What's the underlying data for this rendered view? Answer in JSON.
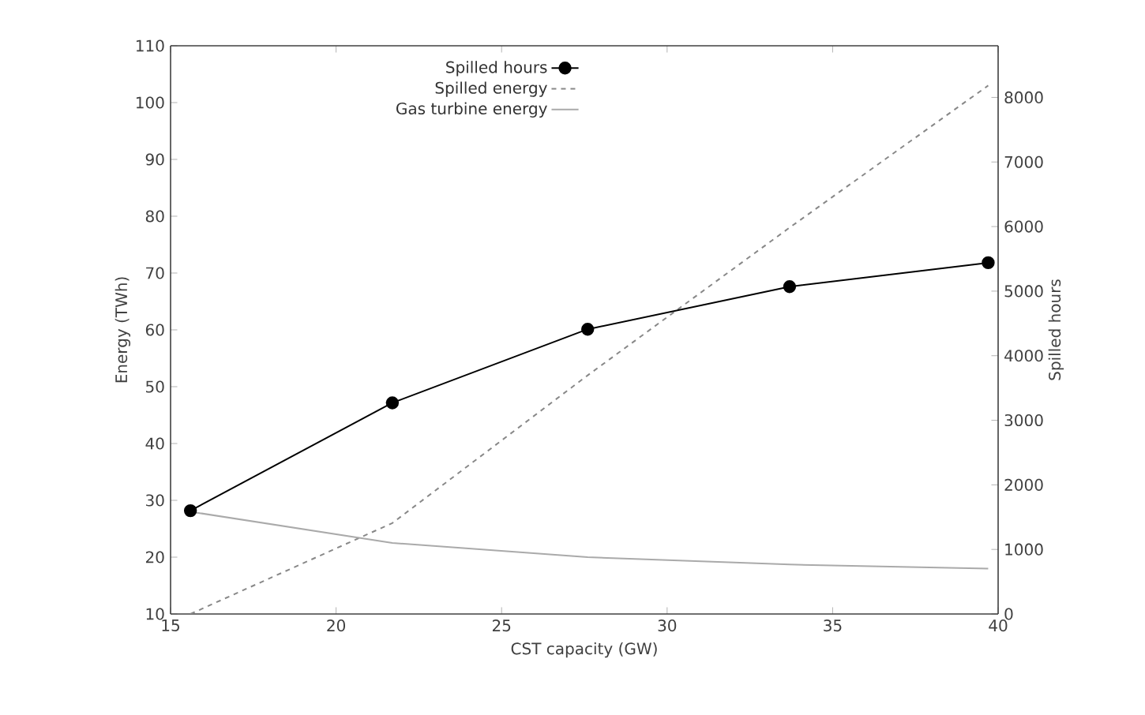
{
  "chart_data": {
    "type": "line",
    "xlabel": "CST capacity (GW)",
    "ylabel": "Energy (TWh)",
    "y2label": "Spilled hours",
    "x": [
      15.6,
      21.7,
      27.6,
      33.7,
      39.7
    ],
    "series": [
      {
        "name": "Spilled hours",
        "color": "#000000",
        "axis": "y2",
        "marker": "circle",
        "line_style": "solid",
        "values": [
          1600,
          3270,
          4410,
          5070,
          5440
        ]
      },
      {
        "name": "Spilled energy",
        "color": "#888888",
        "marker": "none",
        "line_style": "dashed",
        "values": [
          10,
          26,
          52,
          78,
          103
        ]
      },
      {
        "name": "Gas turbine energy",
        "color": "#aaaaaa",
        "marker": "none",
        "line_style": "solid",
        "values": [
          28,
          22.5,
          20,
          18.7,
          18
        ]
      }
    ],
    "xlim": [
      15,
      40
    ],
    "xticks": [
      15,
      20,
      25,
      30,
      35,
      40
    ],
    "ylim": [
      10,
      110
    ],
    "yticks": [
      10,
      20,
      30,
      40,
      50,
      60,
      70,
      80,
      90,
      100,
      110
    ],
    "y2lim": [
      0,
      8800
    ],
    "y2ticks": [
      0,
      1000,
      2000,
      3000,
      4000,
      5000,
      6000,
      7000,
      8000
    ],
    "legend": "top",
    "grid": false
  }
}
